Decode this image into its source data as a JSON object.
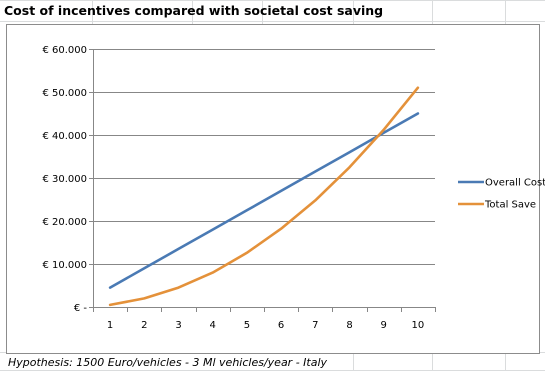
{
  "chart_data": {
    "type": "line",
    "title": "Cost of incentives compared with societal cost saving",
    "xlabel": "",
    "ylabel": "",
    "x": [
      1,
      2,
      3,
      4,
      5,
      6,
      7,
      8,
      9,
      10
    ],
    "ylim": [
      0,
      60000
    ],
    "y_ticks": [
      "€ -",
      "€ 10.000",
      "€ 20.000",
      "€ 30.000",
      "€ 40.000",
      "€ 50.000",
      "€ 60.000"
    ],
    "x_ticks": [
      "1",
      "2",
      "3",
      "4",
      "5",
      "6",
      "7",
      "8",
      "9",
      "10"
    ],
    "grid": true,
    "legend_position": "right",
    "series": [
      {
        "name": "Overall Cost",
        "color": "#4a7ab4",
        "values": [
          4500,
          9000,
          13500,
          18000,
          22500,
          27000,
          31500,
          36000,
          40500,
          45000
        ]
      },
      {
        "name": "Total Save",
        "color": "#e4913a",
        "values": [
          500,
          2000,
          4500,
          8000,
          12600,
          18200,
          24800,
          32500,
          41200,
          51000
        ]
      }
    ]
  },
  "footnote": "Hypothesis:  1500 Euro/vehicles - 3 Ml vehicles/year  - Italy"
}
